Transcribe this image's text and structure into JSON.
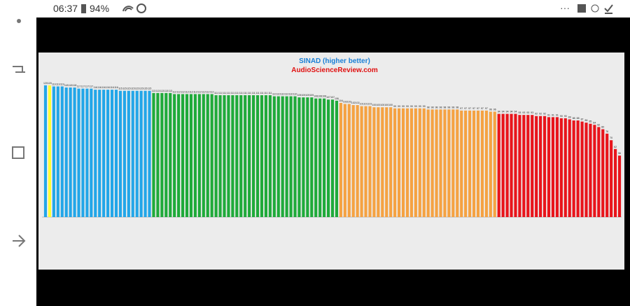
{
  "status_bar": {
    "time": "06:37",
    "battery": "94%"
  },
  "chart_data": {
    "type": "bar",
    "title": "SINAD (higher better)",
    "subtitle": "AudioScienceReview.com",
    "ylim": [
      0,
      125
    ],
    "series": [
      {
        "color": "#22a6e8",
        "values": [
          120
        ]
      },
      {
        "color": "#ffff33",
        "values": [
          120
        ]
      },
      {
        "color": "#22a6e8",
        "values": [
          119,
          119,
          119,
          118,
          118,
          118,
          117,
          117,
          117,
          117,
          116,
          116,
          116,
          116,
          116,
          116,
          115,
          115,
          115,
          115,
          115,
          115,
          115,
          115
        ]
      },
      {
        "color": "#1faa3a",
        "values": [
          113,
          113,
          113,
          113,
          113,
          112,
          112,
          112,
          112,
          112,
          112,
          112,
          112,
          112,
          112,
          111,
          111,
          111,
          111,
          111,
          111,
          111,
          111,
          111,
          111,
          111,
          111,
          111,
          111,
          110,
          110,
          110,
          110,
          110,
          110,
          109,
          109,
          109,
          109,
          108,
          108,
          108,
          107,
          107,
          106
        ]
      },
      {
        "color": "#f5a242",
        "values": [
          104,
          103,
          103,
          102,
          102,
          101,
          101,
          101,
          100,
          100,
          100,
          100,
          100,
          99,
          99,
          99,
          99,
          99,
          99,
          99,
          99,
          98,
          98,
          98,
          98,
          98,
          98,
          98,
          98,
          97,
          97,
          97,
          97,
          97,
          97,
          97,
          96,
          96
        ]
      },
      {
        "color": "#e8141b",
        "values": [
          94,
          94,
          94,
          94,
          94,
          93,
          93,
          93,
          93,
          92,
          92,
          92,
          91,
          91,
          91,
          90,
          90,
          89,
          88,
          88,
          87,
          86,
          85,
          84,
          82,
          80,
          76,
          70,
          62,
          56
        ]
      }
    ]
  }
}
